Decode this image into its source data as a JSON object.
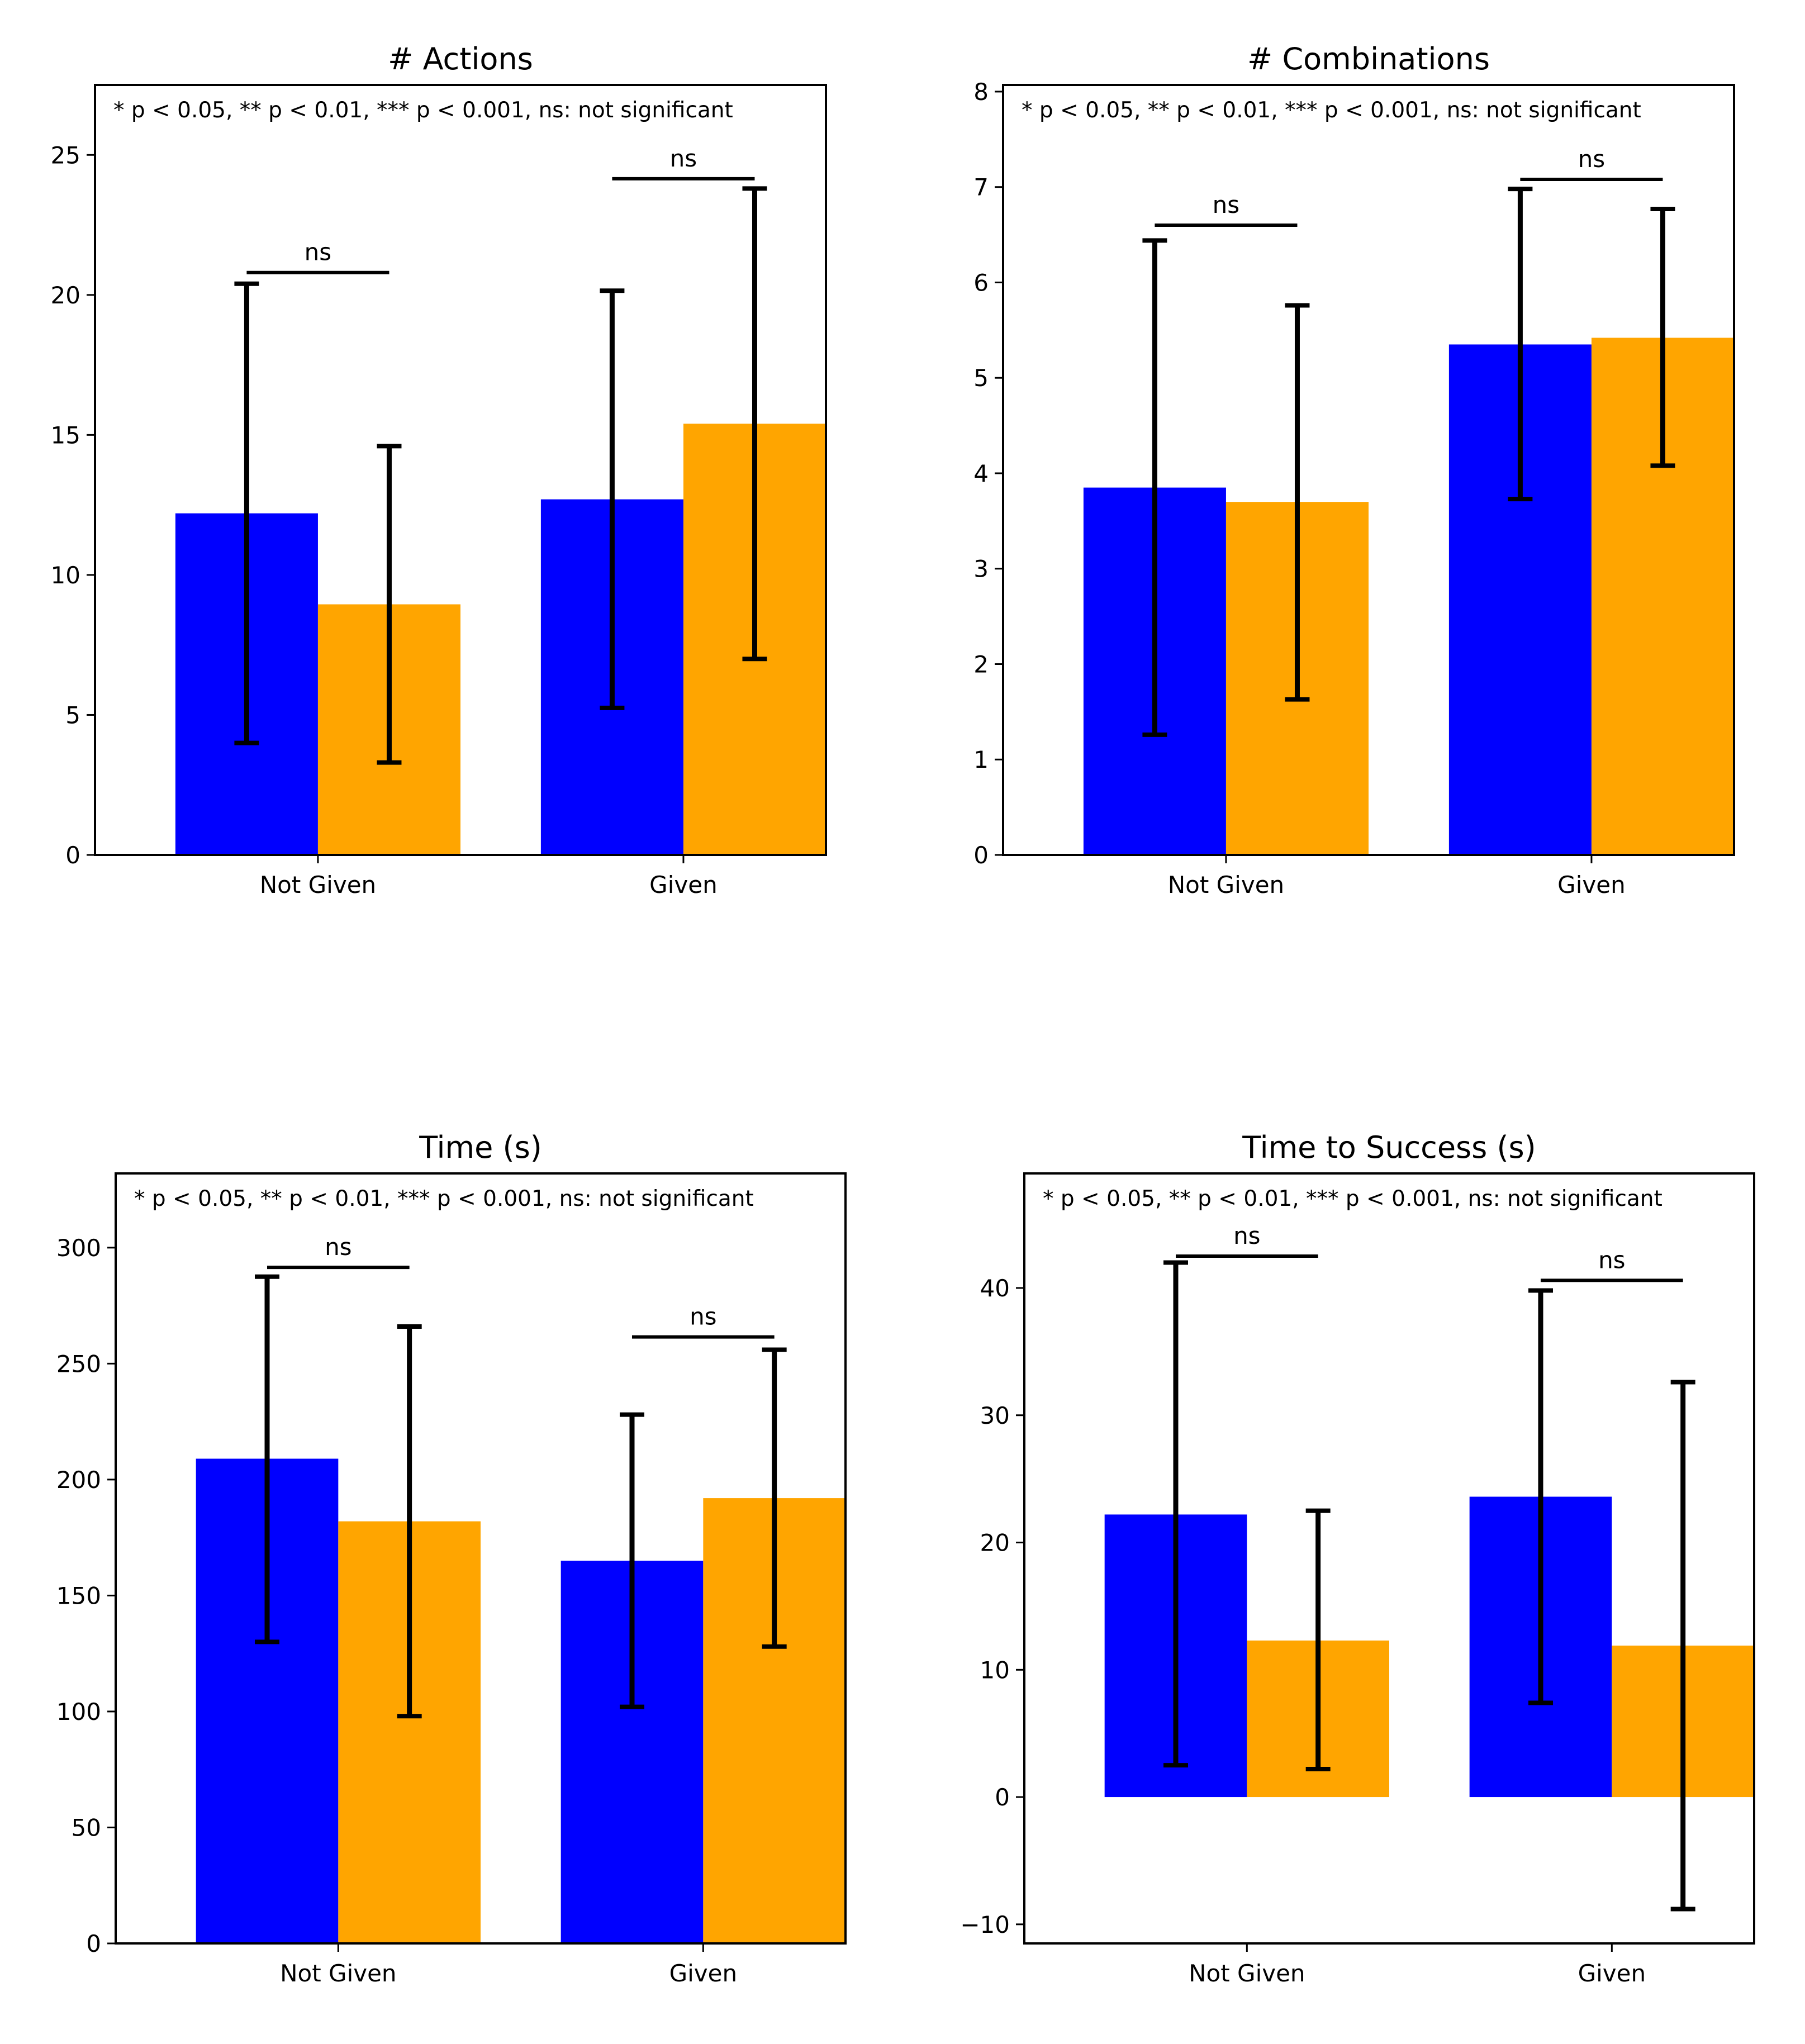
{
  "colors": {
    "series_a": "#0000ff",
    "series_b": "#ffa500",
    "errorbar": "#000000"
  },
  "chart_data": [
    {
      "type": "bar",
      "title": "# Actions",
      "categories": [
        "Not Given",
        "Given"
      ],
      "note": "* p < 0.05, ** p < 0.01, *** p < 0.001, ns: not significant",
      "ylim": [
        0,
        27.5
      ],
      "yticks": [
        0,
        5,
        10,
        15,
        20,
        25
      ],
      "series": [
        {
          "name": "series_a",
          "values": [
            12.2,
            12.7
          ],
          "err_low": [
            4.0,
            5.25
          ],
          "err_high": [
            20.4,
            20.15
          ]
        },
        {
          "name": "series_b",
          "values": [
            8.95,
            15.4
          ],
          "err_low": [
            3.3,
            7.0
          ],
          "err_high": [
            14.6,
            23.8
          ]
        }
      ],
      "significance": [
        {
          "category": 0,
          "label": "ns",
          "y": 20.8
        },
        {
          "category": 1,
          "label": "ns",
          "y": 24.15
        }
      ]
    },
    {
      "type": "bar",
      "title": "# Combinations",
      "categories": [
        "Not Given",
        "Given"
      ],
      "note": "* p < 0.05, ** p < 0.01, *** p < 0.001, ns: not significant",
      "ylim": [
        0,
        8.07
      ],
      "yticks": [
        0,
        1,
        2,
        3,
        4,
        5,
        6,
        7,
        8
      ],
      "series": [
        {
          "name": "series_a",
          "values": [
            3.85,
            5.35
          ],
          "err_low": [
            1.26,
            3.73
          ],
          "err_high": [
            6.44,
            6.98
          ]
        },
        {
          "name": "series_b",
          "values": [
            3.7,
            5.42
          ],
          "err_low": [
            1.63,
            4.08
          ],
          "err_high": [
            5.76,
            6.77
          ]
        }
      ],
      "significance": [
        {
          "category": 0,
          "label": "ns",
          "y": 6.6
        },
        {
          "category": 1,
          "label": "ns",
          "y": 7.08
        }
      ]
    },
    {
      "type": "bar",
      "title": "Time (s)",
      "categories": [
        "Not Given",
        "Given"
      ],
      "note": "* p < 0.05, ** p < 0.01, *** p < 0.001, ns: not significant",
      "ylim": [
        0,
        332
      ],
      "yticks": [
        0,
        50,
        100,
        150,
        200,
        250,
        300
      ],
      "series": [
        {
          "name": "series_a",
          "values": [
            209,
            165
          ],
          "err_low": [
            130,
            102
          ],
          "err_high": [
            287.5,
            228
          ]
        },
        {
          "name": "series_b",
          "values": [
            182,
            192
          ],
          "err_low": [
            98,
            128
          ],
          "err_high": [
            266,
            256
          ]
        }
      ],
      "significance": [
        {
          "category": 0,
          "label": "ns",
          "y": 291.5
        },
        {
          "category": 1,
          "label": "ns",
          "y": 261.5
        }
      ]
    },
    {
      "type": "bar",
      "title": "Time to Success (s)",
      "categories": [
        "Not Given",
        "Given"
      ],
      "note": "* p < 0.05, ** p < 0.01, *** p < 0.001, ns: not significant",
      "ylim": [
        -11.5,
        49
      ],
      "yticks": [
        -10,
        0,
        10,
        20,
        30,
        40
      ],
      "ytick_labels": [
        "−10",
        "0",
        "10",
        "20",
        "30",
        "40"
      ],
      "series": [
        {
          "name": "series_a",
          "values": [
            22.2,
            23.6
          ],
          "err_low": [
            2.5,
            7.4
          ],
          "err_high": [
            42.0,
            39.8
          ]
        },
        {
          "name": "series_b",
          "values": [
            12.3,
            11.9
          ],
          "err_low": [
            2.2,
            -8.8
          ],
          "err_high": [
            22.5,
            32.6
          ]
        }
      ],
      "significance": [
        {
          "category": 0,
          "label": "ns",
          "y": 42.5
        },
        {
          "category": 1,
          "label": "ns",
          "y": 40.6
        }
      ]
    }
  ]
}
